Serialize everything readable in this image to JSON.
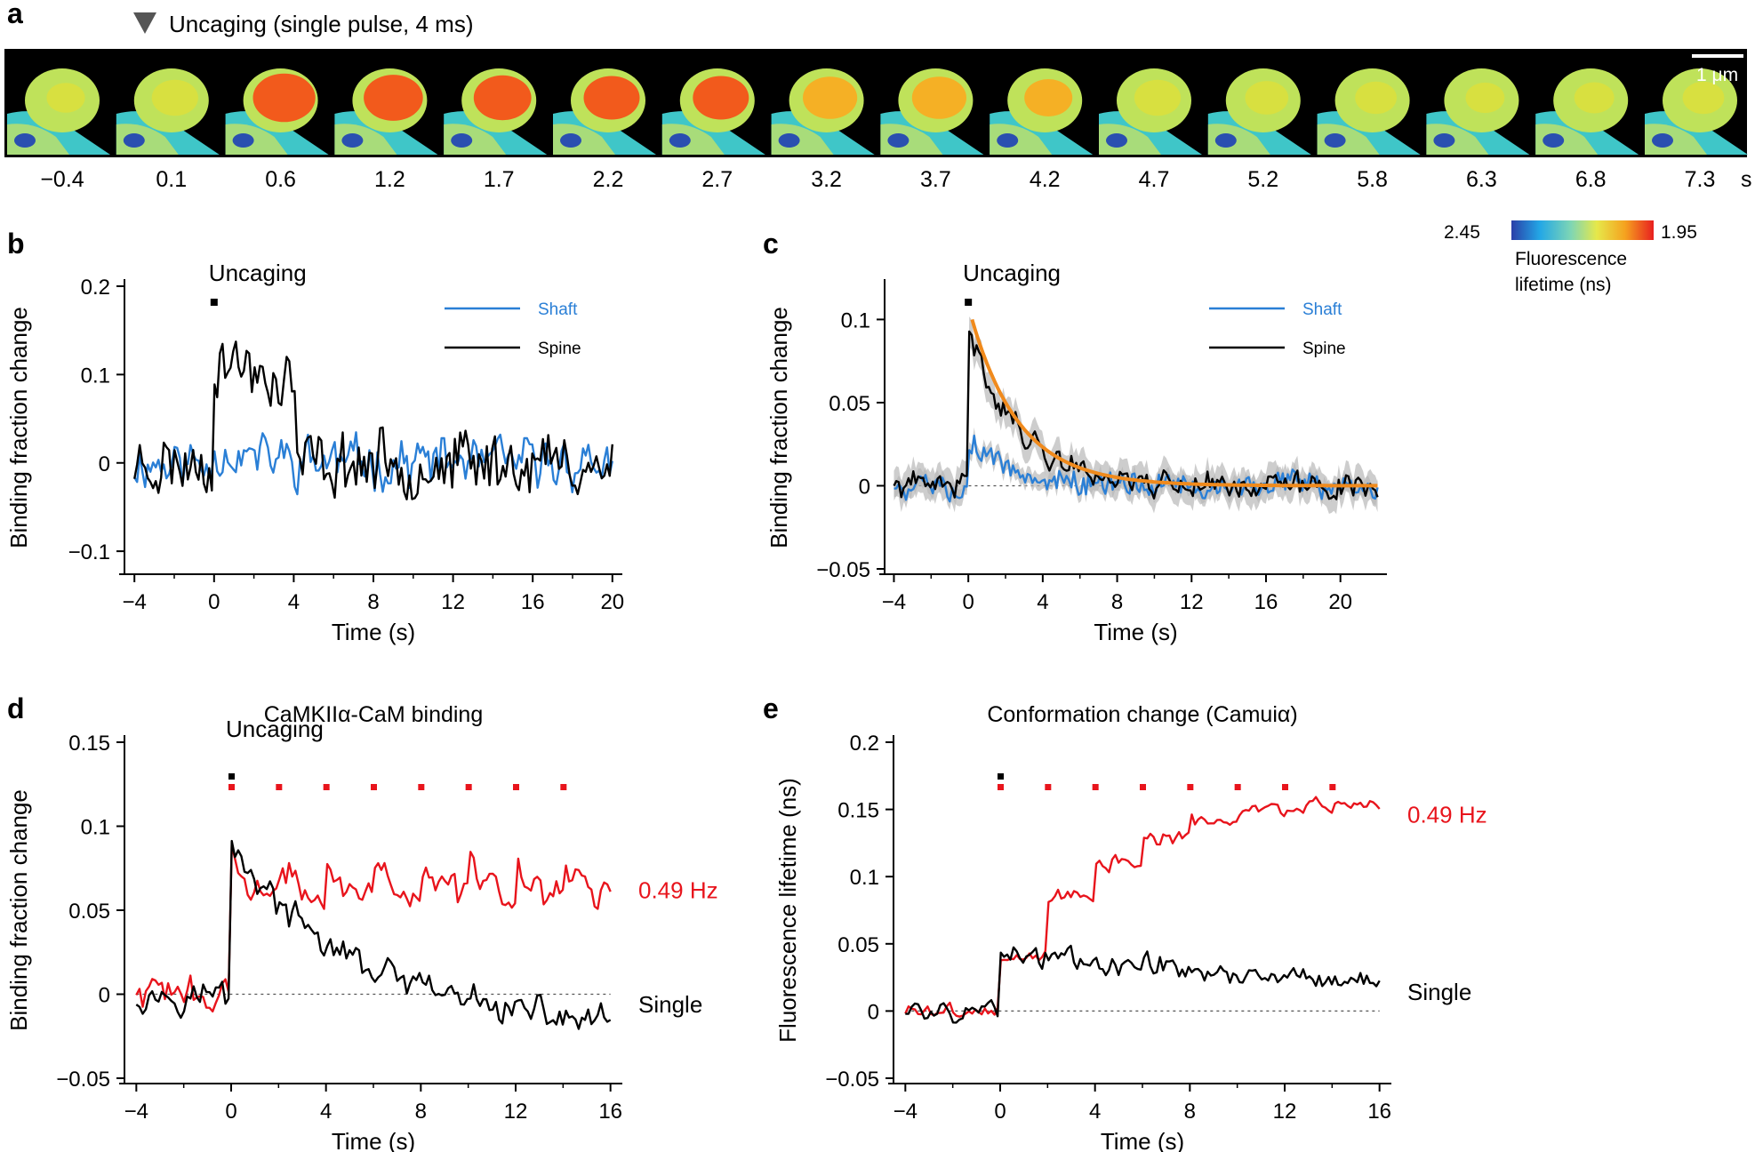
{
  "colors": {
    "shaft": "#2a7fd6",
    "spine": "#000000",
    "fit": "#f08a1c",
    "sem": "#b8b8b8",
    "red": "#e8141c",
    "black": "#000000"
  },
  "panel_a": {
    "label": "a",
    "marker_text": "Uncaging (single pulse, 4 ms)",
    "scale_bar": "1 μm",
    "time_unit": "s",
    "frame_times": [
      "−0.4",
      "0.1",
      "0.6",
      "1.2",
      "1.7",
      "2.2",
      "2.7",
      "3.2",
      "3.7",
      "4.2",
      "4.7",
      "5.2",
      "5.8",
      "6.3",
      "6.8",
      "7.3"
    ],
    "frame_intensity": [
      0.2,
      0.45,
      0.95,
      0.85,
      0.8,
      0.75,
      0.75,
      0.7,
      0.7,
      0.5,
      0.45,
      0.35,
      0.3,
      0.22,
      0.25,
      0.3
    ],
    "colorbar": {
      "min_label": "2.45",
      "max_label": "1.95",
      "title_line1": "Fluorescence",
      "title_line2": "lifetime (ns)"
    }
  },
  "chart_data": [
    {
      "id": "b",
      "label": "b",
      "type": "line",
      "xlabel": "Time (s)",
      "ylabel": "Binding fraction change",
      "xlim": [
        -4.5,
        20.5
      ],
      "ylim": [
        -0.12,
        0.2
      ],
      "xticks": [
        -4,
        0,
        4,
        8,
        12,
        16,
        20
      ],
      "xtick_labels": [
        "−4",
        "0",
        "4",
        "8",
        "12",
        "16",
        "20"
      ],
      "yticks": [
        -0.1,
        0,
        0.1,
        0.2
      ],
      "ytick_labels": [
        "−0.1",
        "0",
        "0.1",
        "0.2"
      ],
      "annotation": "Uncaging",
      "legend": [
        {
          "label": "Shaft",
          "color": "#2a7fd6"
        },
        {
          "label": "Spine",
          "color": "#000000"
        }
      ],
      "series": [
        {
          "name": "Shaft",
          "color": "#2a7fd6",
          "baseline": 0,
          "noise": 0.022,
          "seed": 11,
          "x_start": -4,
          "x_end": 20,
          "n": 180,
          "segments": [
            {
              "t0": 0,
              "amp": 0.015,
              "tau": 3
            }
          ]
        },
        {
          "name": "Spine",
          "color": "#000000",
          "baseline": 0,
          "noise": 0.028,
          "seed": 23,
          "x_start": -4,
          "x_end": 20,
          "n": 180,
          "segments": [
            {
              "t0": 0,
              "amp": 0.12,
              "tau": 14,
              "cutoff": 4.1
            }
          ]
        }
      ]
    },
    {
      "id": "c",
      "label": "c",
      "type": "line",
      "xlabel": "Time (s)",
      "ylabel": "Binding fraction change",
      "xlim": [
        -4.5,
        22.5
      ],
      "ylim": [
        -0.05,
        0.12
      ],
      "xticks": [
        -4,
        0,
        4,
        8,
        12,
        16,
        20
      ],
      "xtick_labels": [
        "−4",
        "0",
        "4",
        "8",
        "12",
        "16",
        "20"
      ],
      "yticks": [
        -0.05,
        0,
        0.05,
        0.1
      ],
      "ytick_labels": [
        "−0.05",
        "0",
        "0.05",
        "0.1"
      ],
      "annotation": "Uncaging",
      "zero_line": true,
      "legend": [
        {
          "label": "Shaft",
          "color": "#2a7fd6"
        },
        {
          "label": "Spine",
          "color": "#000000"
        }
      ],
      "fit": {
        "amp": 0.1,
        "tau": 2.6,
        "color": "#f08a1c"
      },
      "series": [
        {
          "name": "Shaft",
          "color": "#2a7fd6",
          "baseline": 0,
          "noise": 0.006,
          "seed": 5,
          "x_start": -4,
          "x_end": 22,
          "n": 200,
          "sem": 0.005,
          "segments": [
            {
              "t0": 0,
              "amp": 0.028,
              "tau": 2.5
            }
          ]
        },
        {
          "name": "Spine",
          "color": "#000000",
          "baseline": 0,
          "noise": 0.006,
          "seed": 41,
          "x_start": -4,
          "x_end": 22,
          "n": 200,
          "sem": 0.009,
          "segments": [
            {
              "t0": 0,
              "amp": 0.095,
              "tau": 2.7
            }
          ]
        }
      ]
    },
    {
      "id": "d",
      "label": "d",
      "type": "line",
      "title": "CaMKIIα-CaM binding",
      "xlabel": "Time (s)",
      "ylabel": "Binding fraction change",
      "xlim": [
        -4.5,
        16.5
      ],
      "ylim": [
        -0.05,
        0.15
      ],
      "xticks": [
        -4,
        0,
        4,
        8,
        12,
        16
      ],
      "xtick_labels": [
        "−4",
        "0",
        "4",
        "8",
        "12",
        "16"
      ],
      "yticks": [
        -0.05,
        0,
        0.05,
        0.1,
        0.15
      ],
      "ytick_labels": [
        "−0.05",
        "0",
        "0.05",
        "0.1",
        "0.15"
      ],
      "annotation": "Uncaging",
      "zero_line": true,
      "pulse_times": [
        0,
        2,
        4,
        6,
        8,
        10,
        12,
        14
      ],
      "series_labels": [
        {
          "text": "0.49 Hz",
          "color": "#e8141c",
          "y": 0.062
        },
        {
          "text": "Single",
          "color": "#000000",
          "y": -0.006
        }
      ],
      "series": [
        {
          "name": "0.49 Hz",
          "color": "#e8141c",
          "baseline": 0,
          "noise": 0.007,
          "seed": 73,
          "x_start": -4,
          "x_end": 16,
          "n": 150,
          "segments": [
            {
              "t0": 0,
              "amp": 0.09,
              "tau": 2.3,
              "floor": 0.06
            }
          ],
          "pulse_bumps": 0.015
        },
        {
          "name": "Single",
          "color": "#000000",
          "baseline": 0,
          "noise": 0.007,
          "seed": 97,
          "x_start": -4,
          "x_end": 16,
          "n": 150,
          "segments": [
            {
              "t0": 0,
              "amp": 0.09,
              "tau": 4.2
            }
          ],
          "drift": -0.0012
        }
      ]
    },
    {
      "id": "e",
      "label": "e",
      "type": "line",
      "title": "Conformation change (Camuiα)",
      "xlabel": "Time (s)",
      "ylabel": "Fluorescence lifetime (ns)",
      "xlim": [
        -4.5,
        16.5
      ],
      "ylim": [
        -0.05,
        0.2
      ],
      "xticks": [
        -4,
        0,
        4,
        8,
        12,
        16
      ],
      "xtick_labels": [
        "−4",
        "0",
        "4",
        "8",
        "12",
        "16"
      ],
      "yticks": [
        -0.05,
        0,
        0.05,
        0.1,
        0.15,
        0.2
      ],
      "ytick_labels": [
        "−0.05",
        "0",
        "0.05",
        "0.1",
        "0.15",
        "0.2"
      ],
      "zero_line": true,
      "pulse_times": [
        0,
        2,
        4,
        6,
        8,
        10,
        12,
        14
      ],
      "series_labels": [
        {
          "text": "0.49 Hz",
          "color": "#e8141c",
          "y": 0.146
        },
        {
          "text": "Single",
          "color": "#000000",
          "y": 0.014
        }
      ],
      "series": [
        {
          "name": "0.49 Hz",
          "color": "#e8141c",
          "baseline": 0,
          "noise": 0.004,
          "seed": 3,
          "x_start": -4,
          "x_end": 16,
          "n": 150,
          "staircase": [
            0.04,
            0.085,
            0.11,
            0.128,
            0.14,
            0.15,
            0.152,
            0.154
          ]
        },
        {
          "name": "Single",
          "color": "#000000",
          "baseline": 0,
          "noise": 0.006,
          "seed": 59,
          "x_start": -4,
          "x_end": 16,
          "n": 150,
          "segments": [
            {
              "t0": 0,
              "amp": 0.045,
              "tau": 22
            }
          ]
        }
      ]
    }
  ]
}
